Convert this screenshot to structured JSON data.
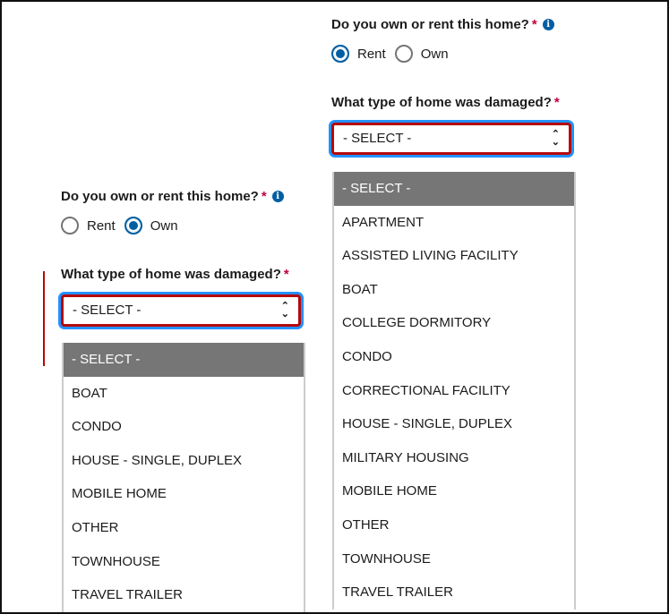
{
  "right_form": {
    "ownership_question": "Do you own or rent this home?",
    "required_mark": "*",
    "info_icon": "i",
    "radio_rent": "Rent",
    "radio_own": "Own",
    "selected": "Rent",
    "home_type_question": "What type of home was damaged?",
    "select_value": "- SELECT -",
    "options": [
      "- SELECT -",
      "APARTMENT",
      "ASSISTED LIVING FACILITY",
      "BOAT",
      "COLLEGE DORMITORY",
      "CONDO",
      "CORRECTIONAL FACILITY",
      "HOUSE - SINGLE, DUPLEX",
      "MILITARY HOUSING",
      "MOBILE HOME",
      "OTHER",
      "TOWNHOUSE",
      "TRAVEL TRAILER"
    ]
  },
  "left_form": {
    "ownership_question": "Do you own or rent this home?",
    "required_mark": "*",
    "info_icon": "i",
    "radio_rent": "Rent",
    "radio_own": "Own",
    "selected": "Own",
    "home_type_question": "What type of home was damaged?",
    "select_value": "- SELECT -",
    "options": [
      "- SELECT -",
      "BOAT",
      "CONDO",
      "HOUSE - SINGLE, DUPLEX",
      "MOBILE HOME",
      "OTHER",
      "TOWNHOUSE",
      "TRAVEL TRAILER"
    ]
  },
  "colors": {
    "accent": "#005ea2",
    "error": "#b50909",
    "focus": "#2491ff",
    "selected_option": "#767676"
  }
}
